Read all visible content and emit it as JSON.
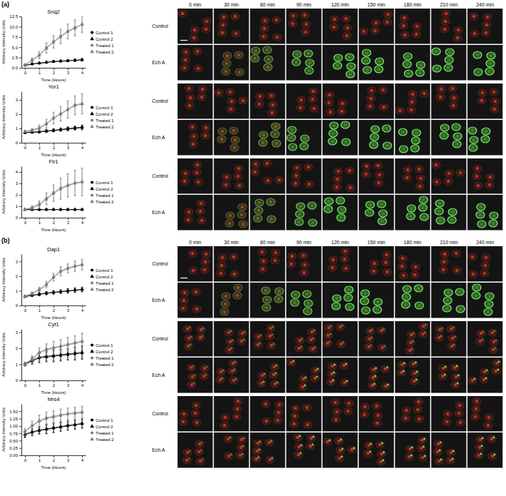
{
  "chart_data": [
    {
      "type": "line",
      "title": "Snq2",
      "x_label": "Time (Hours)",
      "y_label": "Arbitrary Intensity Units",
      "x": [
        0,
        0.5,
        1,
        1.5,
        2,
        2.5,
        3,
        3.5,
        4
      ],
      "xlim": [
        -0.25,
        4.25
      ],
      "xticks": [
        0,
        1,
        2,
        3,
        4
      ],
      "ylim": [
        0,
        12.5
      ],
      "yticks": [
        {
          "value": 0,
          "label": "0.0"
        },
        {
          "value": 2.5,
          "label": "2.5"
        },
        {
          "value": 5,
          "label": "5.0"
        },
        {
          "value": 7.5,
          "label": "7.5"
        },
        {
          "value": 10,
          "label": "10.0"
        },
        {
          "value": 12.5,
          "label": "12.5"
        }
      ],
      "grid": false,
      "legend": "right",
      "series": [
        {
          "name": "Control 1",
          "color": "#000000",
          "marker": "circle",
          "values": [
            0.6,
            0.9,
            1.1,
            1.3,
            1.5,
            1.6,
            1.7,
            1.8,
            1.9
          ],
          "errors": [
            0.1,
            0.1,
            0.15,
            0.15,
            0.2,
            0.2,
            0.2,
            0.25,
            0.25
          ]
        },
        {
          "name": "Control 2",
          "color": "#000000",
          "marker": "triangle",
          "values": [
            0.6,
            0.95,
            1.15,
            1.35,
            1.55,
            1.65,
            1.75,
            1.85,
            2.0
          ],
          "errors": [
            0.1,
            0.1,
            0.15,
            0.15,
            0.2,
            0.2,
            0.2,
            0.25,
            0.25
          ]
        },
        {
          "name": "Treated 1",
          "color": "#808080",
          "marker": "circle",
          "values": [
            0.7,
            1.9,
            3.1,
            4.9,
            6.4,
            7.7,
            8.9,
            9.8,
            10.5
          ],
          "errors": [
            0.2,
            0.5,
            0.8,
            1.2,
            1.5,
            1.7,
            1.8,
            1.9,
            2.0
          ]
        },
        {
          "name": "Treated 2",
          "color": "#808080",
          "marker": "triangle",
          "values": [
            0.7,
            1.8,
            3.0,
            4.7,
            6.2,
            7.5,
            8.8,
            9.6,
            10.6
          ],
          "errors": [
            0.2,
            0.5,
            0.8,
            1.2,
            1.5,
            1.7,
            1.8,
            1.9,
            1.9
          ]
        }
      ]
    },
    {
      "type": "line",
      "title": "Yor1",
      "x_label": "Time (Hours)",
      "y_label": "Arbitrary Intensity Units",
      "x": [
        0,
        0.5,
        1,
        1.5,
        2,
        2.5,
        3,
        3.5,
        4
      ],
      "xlim": [
        -0.25,
        4.25
      ],
      "xticks": [
        0,
        1,
        2,
        3,
        4
      ],
      "ylim": [
        0,
        3.6
      ],
      "yticks": [
        0,
        1,
        2,
        3
      ],
      "grid": false,
      "legend": "right",
      "series": [
        {
          "name": "Control 1",
          "color": "#000000",
          "marker": "circle",
          "values": [
            0.7,
            0.72,
            0.75,
            0.8,
            0.85,
            0.9,
            0.95,
            1.0,
            1.05
          ],
          "errors": [
            0.05,
            0.05,
            0.08,
            0.08,
            0.1,
            0.1,
            0.12,
            0.12,
            0.15
          ]
        },
        {
          "name": "Control 2",
          "color": "#000000",
          "marker": "triangle",
          "values": [
            0.72,
            0.75,
            0.78,
            0.83,
            0.88,
            0.93,
            1.0,
            1.05,
            1.1
          ],
          "errors": [
            0.05,
            0.05,
            0.08,
            0.08,
            0.1,
            0.1,
            0.12,
            0.12,
            0.15
          ]
        },
        {
          "name": "Treated 1",
          "color": "#808080",
          "marker": "circle",
          "values": [
            0.8,
            0.85,
            1.0,
            1.3,
            1.7,
            2.0,
            2.3,
            2.6,
            2.7
          ],
          "errors": [
            0.05,
            0.1,
            0.2,
            0.3,
            0.4,
            0.5,
            0.6,
            0.65,
            0.7
          ]
        },
        {
          "name": "Treated 2",
          "color": "#808080",
          "marker": "triangle",
          "values": [
            0.78,
            0.9,
            1.05,
            1.35,
            1.75,
            2.05,
            2.35,
            2.65,
            2.75
          ],
          "errors": [
            0.05,
            0.1,
            0.2,
            0.3,
            0.4,
            0.5,
            0.6,
            0.65,
            0.7
          ]
        }
      ]
    },
    {
      "type": "line",
      "title": "Flr1",
      "x_label": "Time (Hours)",
      "y_label": "Arbitrary Intensity Units",
      "x": [
        0,
        0.5,
        1,
        1.5,
        2,
        2.5,
        3,
        3.5,
        4
      ],
      "xlim": [
        -0.25,
        4.25
      ],
      "xticks": [
        0,
        1,
        2,
        3,
        4
      ],
      "ylim": [
        0,
        4.5
      ],
      "yticks": [
        0,
        1,
        2,
        3,
        4
      ],
      "grid": false,
      "legend": "right",
      "series": [
        {
          "name": "Control 1",
          "color": "#000000",
          "marker": "circle",
          "values": [
            0.7,
            0.7,
            0.7,
            0.7,
            0.7,
            0.7,
            0.7,
            0.7,
            0.7
          ],
          "errors": [
            0.05,
            0.05,
            0.05,
            0.05,
            0.05,
            0.05,
            0.05,
            0.05,
            0.05
          ]
        },
        {
          "name": "Control 2",
          "color": "#000000",
          "marker": "triangle",
          "values": [
            0.72,
            0.72,
            0.72,
            0.72,
            0.72,
            0.72,
            0.72,
            0.72,
            0.72
          ],
          "errors": [
            0.05,
            0.05,
            0.05,
            0.05,
            0.05,
            0.05,
            0.05,
            0.05,
            0.05
          ]
        },
        {
          "name": "Treated 1",
          "color": "#808080",
          "marker": "circle",
          "values": [
            0.7,
            0.85,
            1.1,
            1.6,
            2.1,
            2.5,
            2.8,
            3.0,
            3.1
          ],
          "errors": [
            0.05,
            0.15,
            0.3,
            0.5,
            0.7,
            0.9,
            1.0,
            1.1,
            1.2
          ]
        },
        {
          "name": "Treated 2",
          "color": "#808080",
          "marker": "triangle",
          "values": [
            0.72,
            0.9,
            1.2,
            1.7,
            2.2,
            2.6,
            2.85,
            3.05,
            3.15
          ],
          "errors": [
            0.05,
            0.15,
            0.3,
            0.5,
            0.7,
            0.9,
            1.0,
            1.1,
            1.2
          ]
        }
      ]
    },
    {
      "type": "line",
      "title": "Dap1",
      "x_label": "Time (Hours)",
      "y_label": "Arbitrary Intensity Units",
      "x": [
        0,
        0.5,
        1,
        1.5,
        2,
        2.5,
        3,
        3.5,
        4
      ],
      "xlim": [
        -0.25,
        4.25
      ],
      "xticks": [
        0,
        1,
        2,
        3,
        4
      ],
      "ylim": [
        0,
        3.5
      ],
      "yticks": [
        0,
        1,
        2,
        3
      ],
      "grid": false,
      "legend": "right",
      "series": [
        {
          "name": "Control 1",
          "color": "#000000",
          "marker": "circle",
          "values": [
            0.6,
            0.68,
            0.75,
            0.82,
            0.88,
            0.93,
            0.98,
            1.03,
            1.08
          ],
          "errors": [
            0.05,
            0.08,
            0.1,
            0.1,
            0.12,
            0.12,
            0.15,
            0.15,
            0.15
          ]
        },
        {
          "name": "Control 2",
          "color": "#000000",
          "marker": "triangle",
          "values": [
            0.62,
            0.7,
            0.78,
            0.85,
            0.9,
            0.95,
            1.0,
            1.05,
            1.1
          ],
          "errors": [
            0.05,
            0.08,
            0.1,
            0.1,
            0.12,
            0.12,
            0.15,
            0.15,
            0.15
          ]
        },
        {
          "name": "Treated 1",
          "color": "#808080",
          "marker": "circle",
          "values": [
            0.6,
            0.8,
            1.05,
            1.4,
            1.9,
            2.3,
            2.5,
            2.65,
            2.75
          ],
          "errors": [
            0.05,
            0.1,
            0.15,
            0.2,
            0.25,
            0.3,
            0.3,
            0.35,
            0.35
          ]
        },
        {
          "name": "Treated 2",
          "color": "#808080",
          "marker": "triangle",
          "values": [
            0.62,
            0.82,
            1.1,
            1.45,
            1.95,
            2.35,
            2.55,
            2.7,
            2.8
          ],
          "errors": [
            0.05,
            0.1,
            0.15,
            0.2,
            0.25,
            0.3,
            0.3,
            0.35,
            0.35
          ]
        }
      ]
    },
    {
      "type": "line",
      "title": "Cyt1",
      "x_label": "Time (Hours)",
      "y_label": "Arbitrary Intensity Units",
      "x": [
        0,
        0.5,
        1,
        1.5,
        2,
        2.5,
        3,
        3.5,
        4
      ],
      "xlim": [
        -0.25,
        4.25
      ],
      "xticks": [
        0,
        1,
        2,
        3,
        4
      ],
      "ylim": [
        0,
        3.2
      ],
      "yticks": [
        0,
        1,
        2,
        3
      ],
      "grid": false,
      "legend": "right",
      "series": [
        {
          "name": "Control 1",
          "color": "#000000",
          "marker": "circle",
          "values": [
            1.0,
            1.2,
            1.4,
            1.45,
            1.5,
            1.55,
            1.6,
            1.65,
            1.7
          ],
          "errors": [
            0.1,
            0.2,
            0.3,
            0.3,
            0.35,
            0.35,
            0.35,
            0.4,
            0.4
          ]
        },
        {
          "name": "Control 2",
          "color": "#000000",
          "marker": "triangle",
          "values": [
            1.0,
            1.25,
            1.45,
            1.5,
            1.55,
            1.6,
            1.65,
            1.7,
            1.75
          ],
          "errors": [
            0.1,
            0.2,
            0.3,
            0.3,
            0.35,
            0.35,
            0.35,
            0.4,
            0.4
          ]
        },
        {
          "name": "Treated 1",
          "color": "#808080",
          "marker": "circle",
          "values": [
            1.0,
            1.3,
            1.7,
            1.9,
            2.0,
            2.1,
            2.2,
            2.3,
            2.4
          ],
          "errors": [
            0.1,
            0.2,
            0.3,
            0.35,
            0.4,
            0.4,
            0.45,
            0.45,
            0.5
          ]
        },
        {
          "name": "Treated 2",
          "color": "#808080",
          "marker": "triangle",
          "values": [
            1.05,
            1.35,
            1.75,
            1.95,
            2.05,
            2.15,
            2.25,
            2.35,
            2.45
          ],
          "errors": [
            0.1,
            0.2,
            0.3,
            0.35,
            0.4,
            0.4,
            0.45,
            0.45,
            0.5
          ]
        }
      ]
    },
    {
      "type": "line",
      "title": "Mrs4",
      "x_label": "Time (Hours)",
      "y_label": "Arbitrary Intensity Units",
      "x": [
        0,
        0.5,
        1,
        1.5,
        2,
        2.5,
        3,
        3.5,
        4
      ],
      "xlim": [
        -0.25,
        4.25
      ],
      "xticks": [
        0,
        1,
        2,
        3,
        4
      ],
      "ylim": [
        0,
        1.75
      ],
      "yticks": [
        {
          "value": 0,
          "label": "0.00"
        },
        {
          "value": 0.25,
          "label": "0.25"
        },
        {
          "value": 0.5,
          "label": "0.50"
        },
        {
          "value": 0.75,
          "label": "0.75"
        },
        {
          "value": 1,
          "label": "1.00"
        },
        {
          "value": 1.25,
          "label": "1.25"
        },
        {
          "value": 1.5,
          "label": "1.50"
        }
      ],
      "grid": false,
      "legend": "right",
      "series": [
        {
          "name": "Control 1",
          "color": "#000000",
          "marker": "circle",
          "values": [
            0.7,
            0.78,
            0.84,
            0.88,
            0.92,
            0.96,
            1.0,
            1.03,
            1.07
          ],
          "errors": [
            0.1,
            0.12,
            0.12,
            0.15,
            0.15,
            0.15,
            0.15,
            0.15,
            0.15
          ]
        },
        {
          "name": "Control 2",
          "color": "#000000",
          "marker": "triangle",
          "values": [
            0.72,
            0.8,
            0.86,
            0.9,
            0.94,
            0.98,
            1.02,
            1.05,
            1.09
          ],
          "errors": [
            0.1,
            0.12,
            0.12,
            0.15,
            0.15,
            0.15,
            0.15,
            0.15,
            0.15
          ]
        },
        {
          "name": "Treated 1",
          "color": "#808080",
          "marker": "circle",
          "values": [
            0.8,
            1.0,
            1.15,
            1.25,
            1.3,
            1.35,
            1.4,
            1.42,
            1.45
          ],
          "errors": [
            0.1,
            0.15,
            0.2,
            0.2,
            0.2,
            0.2,
            0.2,
            0.2,
            0.2
          ]
        },
        {
          "name": "Treated 2",
          "color": "#808080",
          "marker": "triangle",
          "values": [
            0.82,
            1.02,
            1.18,
            1.28,
            1.33,
            1.38,
            1.42,
            1.45,
            1.48
          ],
          "errors": [
            0.1,
            0.15,
            0.2,
            0.2,
            0.2,
            0.2,
            0.2,
            0.2,
            0.2
          ]
        }
      ]
    }
  ],
  "figure": {
    "panel_labels": [
      "(a)",
      "(b)"
    ],
    "time_labels": [
      "0 min",
      "30 min",
      "60 min",
      "90 min",
      "120 min",
      "150 min",
      "180 min",
      "210 min",
      "240 min"
    ],
    "row_labels": [
      "Control",
      "Ech A"
    ]
  }
}
